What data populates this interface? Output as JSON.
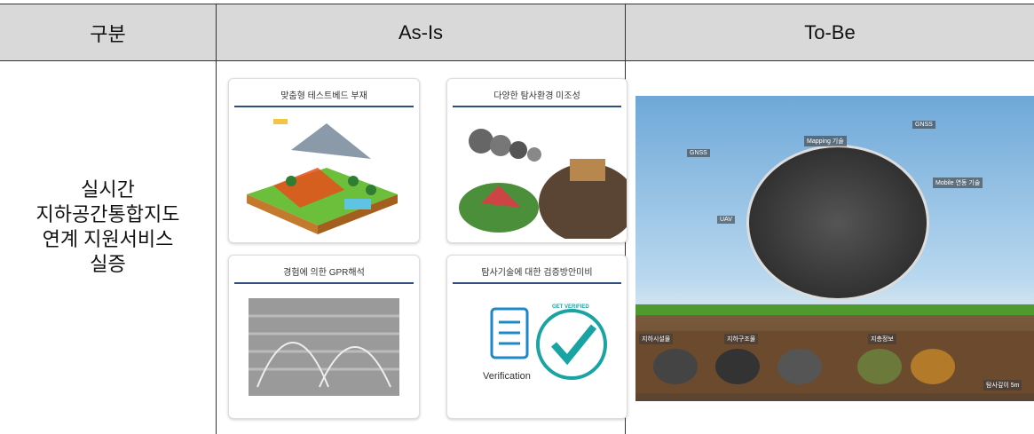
{
  "header": {
    "cells": [
      "구분",
      "As-Is",
      "To-Be"
    ]
  },
  "row": {
    "label_lines": [
      "실시간",
      "지하공간통합지도",
      "연계  지원서비스",
      "실증"
    ],
    "as_is_cards": [
      {
        "title": "맞춤형 테스트베드 부재"
      },
      {
        "title": "다양한 탐사환경 미조성"
      },
      {
        "title": "경험에 의한 GPR해석"
      },
      {
        "title": "탐사기술에 대한 검증방안미비"
      }
    ],
    "verification": {
      "label": "Verification",
      "stamp": "GET VERIFIED"
    },
    "to_be_labels": [
      "GNSS",
      "Mapping 기술",
      "GNSS",
      "Mobile 연동 기술",
      "UAV",
      "지하시설물",
      "지하구조물",
      "지층정보",
      "탐사깊이 5m"
    ]
  }
}
